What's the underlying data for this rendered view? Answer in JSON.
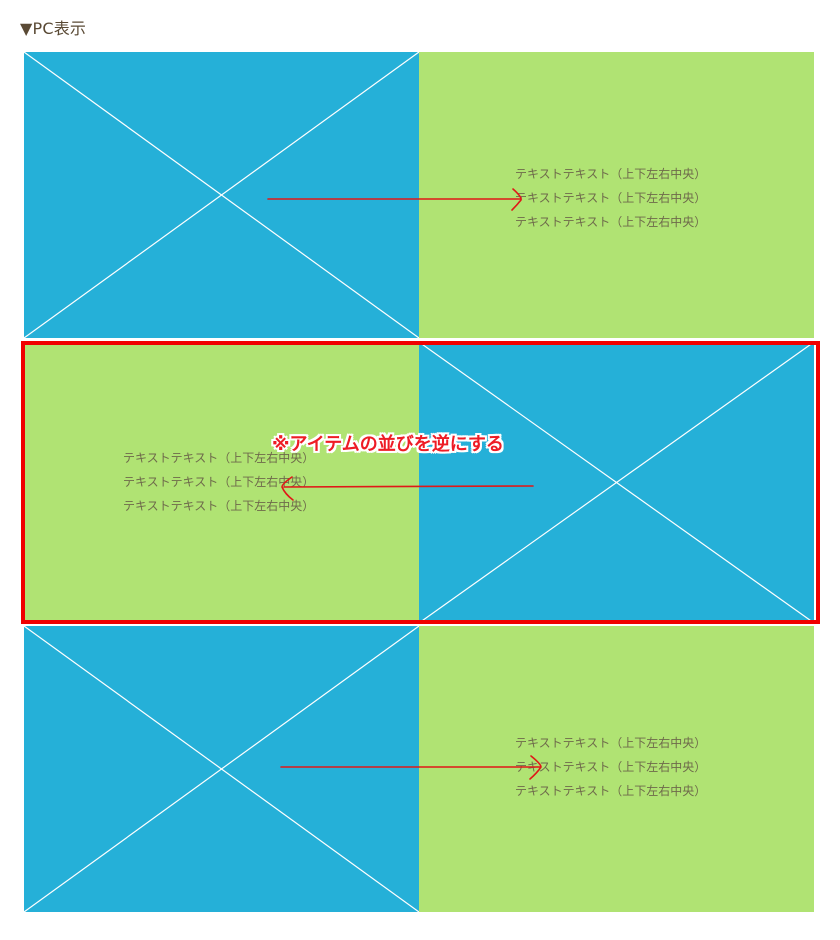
{
  "header": {
    "label": "▼PC表示"
  },
  "rows": [
    {
      "lines": [
        "テキストテキスト（上下左右中央）",
        "テキストテキスト（上下左右中央）",
        "テキストテキスト（上下左右中央）"
      ]
    },
    {
      "lines": [
        "テキストテキスト（上下左右中央）",
        "テキストテキスト（上下左右中央）",
        "テキストテキスト（上下左右中央）"
      ]
    },
    {
      "lines": [
        "テキストテキスト（上下左右中央）",
        "テキストテキスト（上下左右中央）",
        "テキストテキスト（上下左右中央）"
      ]
    }
  ],
  "annotation": {
    "note": "※アイテムの並びを逆にする",
    "color": "#ee1c25"
  },
  "colors": {
    "image_placeholder": "#25b0d8",
    "text_panel": "#b0e373",
    "highlight_border": "#f00000"
  }
}
